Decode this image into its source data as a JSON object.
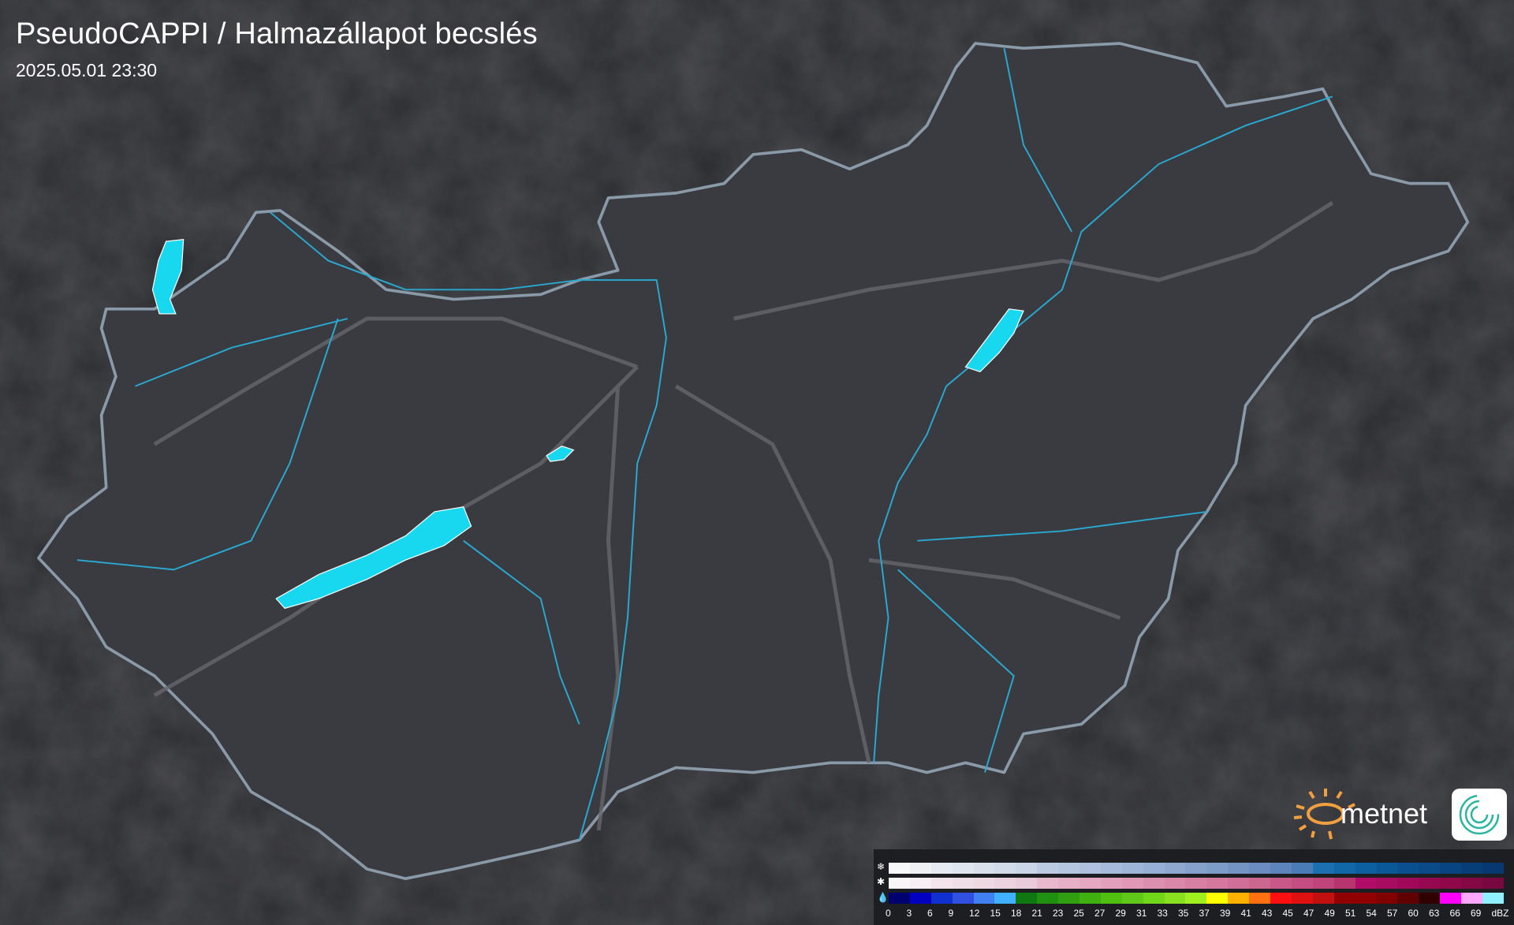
{
  "header": {
    "title": "PseudoCAPPI  / Halmazállapot becslés",
    "timestamp": "2025.05.01 23:30"
  },
  "logo": {
    "text": "metnet",
    "sun_color": "#f0a040",
    "badge_color": "#2ab5a0"
  },
  "colors": {
    "background": "#2b2c30",
    "country_fill": "#3a3b40",
    "border": "#8a9aa8",
    "river": "#2aa8d0",
    "lake": "#18d8f0",
    "roads": "#6a6b70"
  },
  "legend": {
    "snow_icon": "snowflake-icon",
    "mixed_icon": "sleet-icon",
    "rain_icon": "raindrop-icon",
    "snow_colors": [
      "#f8f8fa",
      "#eef0f4",
      "#e6eaf2",
      "#e0e6f0",
      "#d8e0ec",
      "#d2dbea",
      "#cad6e8",
      "#bccbe2",
      "#b4c6e0",
      "#aec0de",
      "#a6bbdc",
      "#9eb5d8",
      "#96afd4",
      "#8ea8d0",
      "#86a2cc",
      "#7e9cc8",
      "#7494c4",
      "#6a8cc0",
      "#5e84bc",
      "#4a7cb8",
      "#1a70b0",
      "#1068a8",
      "#0c60a0",
      "#0a5898",
      "#0a5090",
      "#0a4a88",
      "#084480",
      "#083e78",
      "#083870"
    ],
    "mixed_colors": [
      "#faf6f8",
      "#f6eef2",
      "#f2e4ea",
      "#f0dee6",
      "#eed8e2",
      "#ecd2de",
      "#e8cada",
      "#e8b8cc",
      "#e6b0c6",
      "#e4a8c2",
      "#e2a0bc",
      "#e098b6",
      "#dc90b0",
      "#da88aa",
      "#d680a4",
      "#d4789e",
      "#d07098",
      "#cc6890",
      "#c85888",
      "#c44e82",
      "#c0447c",
      "#b8346e",
      "#b00c68",
      "#a80c60",
      "#a00858",
      "#960850",
      "#8e084a",
      "#840844",
      "#7a0840"
    ],
    "rain_colors": [
      "#000070",
      "#0000c0",
      "#1030d0",
      "#3050e0",
      "#4080f0",
      "#40b0ff",
      "#107810",
      "#209010",
      "#30a010",
      "#40b010",
      "#50c010",
      "#60c818",
      "#70d818",
      "#88e020",
      "#a0f020",
      "#ffff00",
      "#ffb000",
      "#ff7010",
      "#ff1010",
      "#e01010",
      "#c01010",
      "#900000",
      "#900000",
      "#800000",
      "#600000",
      "#300000",
      "#ff00ff",
      "#ffa8ff",
      "#90f0ff"
    ],
    "labels": [
      "0",
      "3",
      "6",
      "9",
      "12",
      "15",
      "18",
      "21",
      "23",
      "25",
      "27",
      "29",
      "31",
      "33",
      "35",
      "37",
      "39",
      "41",
      "43",
      "45",
      "47",
      "49",
      "51",
      "54",
      "57",
      "60",
      "63",
      "66",
      "69",
      "dBZ"
    ]
  }
}
